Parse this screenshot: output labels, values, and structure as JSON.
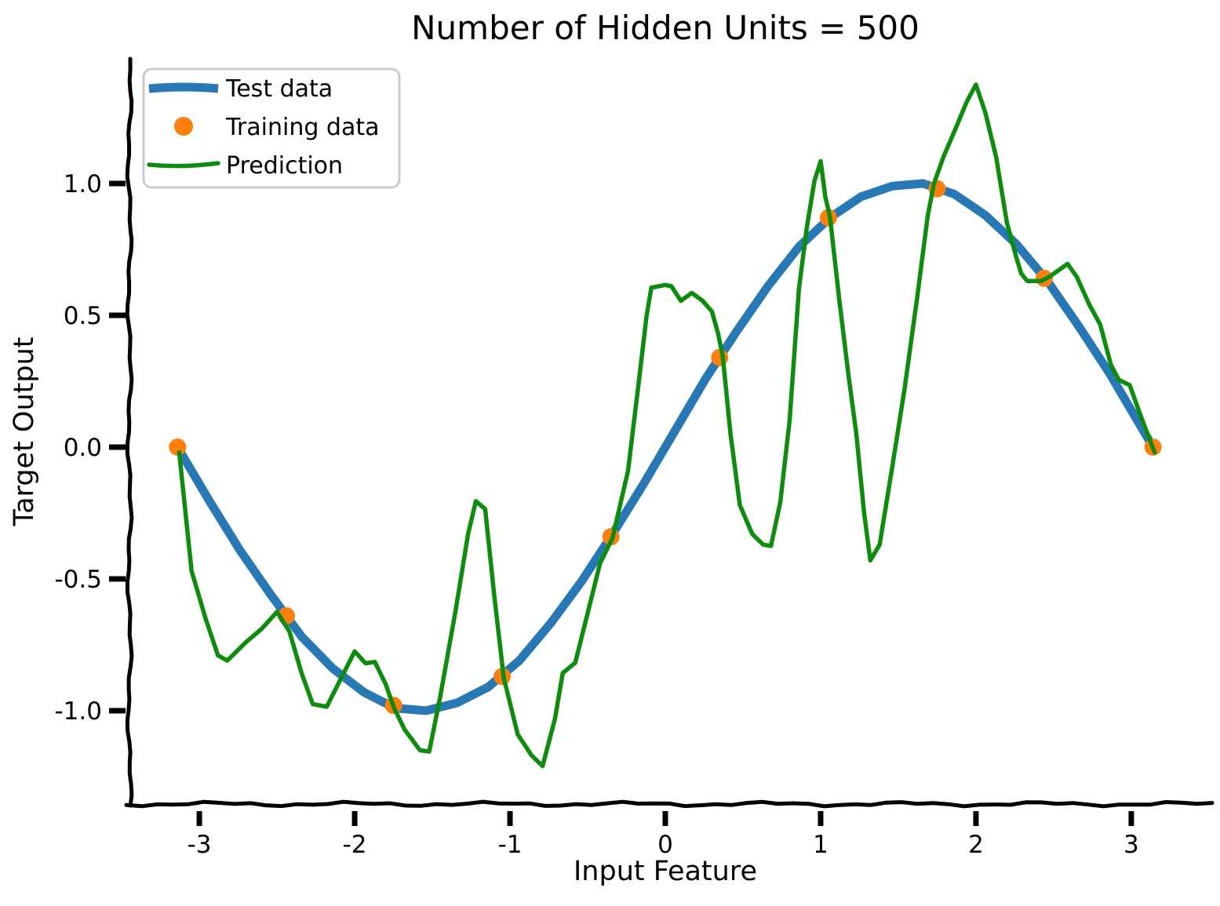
{
  "title": "Number of Hidden Units = 500",
  "axes": {
    "xlabel": "Input Feature",
    "ylabel": "Target Output",
    "x_ticks": [
      -3,
      -2,
      -1,
      0,
      1,
      2,
      3
    ],
    "x_tick_labels": [
      "-3",
      "-2",
      "-1",
      "0",
      "1",
      "2",
      "3"
    ],
    "y_ticks": [
      1.0,
      0.5,
      0.0,
      -0.5,
      -1.0
    ],
    "y_tick_labels": [
      "1.0",
      "0.5",
      "0.0",
      "-0.5",
      "-1.0"
    ],
    "xlim": [
      -3.45,
      3.45
    ],
    "ylim": [
      -1.354,
      1.473
    ],
    "grid": "off",
    "style": "xkcd-sketch"
  },
  "colors": {
    "test_line": "#2878b5",
    "training_dots": "#ff7f0e",
    "prediction_line": "#0d8c0d",
    "axis": "#000000",
    "legend_border": "#cccccc",
    "background": "#ffffff"
  },
  "legend": {
    "position": "upper left",
    "items": [
      {
        "label": "Test data",
        "marker": "thick-line",
        "color": "#2878b5"
      },
      {
        "label": "Training data",
        "marker": "dot",
        "color": "#ff7f0e"
      },
      {
        "label": "Prediction",
        "marker": "line",
        "color": "#0d8c0d"
      }
    ]
  },
  "chart_data": {
    "type": "line",
    "title": "Number of Hidden Units = 500",
    "xlabel": "Input Feature",
    "ylabel": "Target Output",
    "xlim": [
      -3.45,
      3.45
    ],
    "ylim": [
      -1.354,
      1.473
    ],
    "legend_position": "upper left",
    "grid": false,
    "series": [
      {
        "name": "Test data",
        "style": "thick-line",
        "color": "#2878b5",
        "linewidth": 11,
        "description": "smooth sine curve y = sin(x)",
        "points": [
          [
            -3.14,
            0
          ],
          [
            -2.94,
            -0.2
          ],
          [
            -2.74,
            -0.39
          ],
          [
            -2.54,
            -0.56
          ],
          [
            -2.34,
            -0.72
          ],
          [
            -2.14,
            -0.84
          ],
          [
            -1.94,
            -0.93
          ],
          [
            -1.74,
            -0.99
          ],
          [
            -1.54,
            -1.0
          ],
          [
            -1.34,
            -0.97
          ],
          [
            -1.14,
            -0.91
          ],
          [
            -0.94,
            -0.81
          ],
          [
            -0.74,
            -0.67
          ],
          [
            -0.54,
            -0.51
          ],
          [
            -0.34,
            -0.33
          ],
          [
            -0.14,
            -0.14
          ],
          [
            0.06,
            0.06
          ],
          [
            0.26,
            0.26
          ],
          [
            0.46,
            0.44
          ],
          [
            0.66,
            0.61
          ],
          [
            0.86,
            0.76
          ],
          [
            1.06,
            0.87
          ],
          [
            1.26,
            0.95
          ],
          [
            1.46,
            0.99
          ],
          [
            1.66,
            1.0
          ],
          [
            1.86,
            0.96
          ],
          [
            2.06,
            0.88
          ],
          [
            2.26,
            0.77
          ],
          [
            2.46,
            0.63
          ],
          [
            2.66,
            0.46
          ],
          [
            2.86,
            0.28
          ],
          [
            3.06,
            0.08
          ],
          [
            3.14,
            0
          ]
        ]
      },
      {
        "name": "Training data",
        "style": "scatter",
        "color": "#ff7f0e",
        "marker_radius": 11,
        "description": "10 points evenly spaced on y = sin(x)",
        "points": [
          [
            -3.14,
            0.0
          ],
          [
            -2.44,
            -0.64
          ],
          [
            -1.75,
            -0.98
          ],
          [
            -1.05,
            -0.87
          ],
          [
            -0.35,
            -0.34
          ],
          [
            0.35,
            0.34
          ],
          [
            1.05,
            0.87
          ],
          [
            1.75,
            0.98
          ],
          [
            2.44,
            0.64
          ],
          [
            3.14,
            0.0
          ]
        ]
      },
      {
        "name": "Prediction",
        "style": "line",
        "color": "#0d8c0d",
        "linewidth": 5.5,
        "description": "overfit jagged neural-network prediction",
        "points": [
          [
            -3.13,
            -0.02
          ],
          [
            -3.05,
            -0.47
          ],
          [
            -2.96,
            -0.65
          ],
          [
            -2.88,
            -0.79
          ],
          [
            -2.82,
            -0.81
          ],
          [
            -2.7,
            -0.74
          ],
          [
            -2.6,
            -0.69
          ],
          [
            -2.5,
            -0.625
          ],
          [
            -2.42,
            -0.7
          ],
          [
            -2.34,
            -0.86
          ],
          [
            -2.27,
            -0.975
          ],
          [
            -2.18,
            -0.985
          ],
          [
            -2.09,
            -0.88
          ],
          [
            -2.0,
            -0.775
          ],
          [
            -1.93,
            -0.82
          ],
          [
            -1.87,
            -0.815
          ],
          [
            -1.8,
            -0.9
          ],
          [
            -1.75,
            -0.985
          ],
          [
            -1.68,
            -1.07
          ],
          [
            -1.58,
            -1.15
          ],
          [
            -1.52,
            -1.155
          ],
          [
            -1.45,
            -0.95
          ],
          [
            -1.35,
            -0.62
          ],
          [
            -1.27,
            -0.33
          ],
          [
            -1.22,
            -0.205
          ],
          [
            -1.16,
            -0.235
          ],
          [
            -1.1,
            -0.57
          ],
          [
            -1.04,
            -0.875
          ],
          [
            -0.95,
            -1.09
          ],
          [
            -0.86,
            -1.17
          ],
          [
            -0.79,
            -1.21
          ],
          [
            -0.71,
            -1.03
          ],
          [
            -0.66,
            -0.857
          ],
          [
            -0.58,
            -0.818
          ],
          [
            -0.5,
            -0.63
          ],
          [
            -0.42,
            -0.44
          ],
          [
            -0.34,
            -0.345
          ],
          [
            -0.24,
            -0.09
          ],
          [
            -0.17,
            0.25
          ],
          [
            -0.12,
            0.5
          ],
          [
            -0.09,
            0.605
          ],
          [
            0.0,
            0.615
          ],
          [
            0.04,
            0.61
          ],
          [
            0.1,
            0.555
          ],
          [
            0.17,
            0.585
          ],
          [
            0.24,
            0.555
          ],
          [
            0.3,
            0.515
          ],
          [
            0.34,
            0.43
          ],
          [
            0.37,
            0.345
          ],
          [
            0.42,
            0.05
          ],
          [
            0.48,
            -0.22
          ],
          [
            0.56,
            -0.33
          ],
          [
            0.63,
            -0.37
          ],
          [
            0.68,
            -0.375
          ],
          [
            0.74,
            -0.21
          ],
          [
            0.8,
            0.1
          ],
          [
            0.86,
            0.6
          ],
          [
            0.91,
            0.83
          ],
          [
            0.96,
            1.01
          ],
          [
            1.0,
            1.085
          ],
          [
            1.03,
            0.95
          ],
          [
            1.06,
            0.875
          ],
          [
            1.12,
            0.56
          ],
          [
            1.18,
            0.27
          ],
          [
            1.23,
            0.05
          ],
          [
            1.28,
            -0.25
          ],
          [
            1.32,
            -0.43
          ],
          [
            1.38,
            -0.37
          ],
          [
            1.46,
            -0.08
          ],
          [
            1.54,
            0.22
          ],
          [
            1.62,
            0.56
          ],
          [
            1.69,
            0.88
          ],
          [
            1.73,
            1.0
          ],
          [
            1.79,
            1.1
          ],
          [
            1.87,
            1.21
          ],
          [
            1.94,
            1.31
          ],
          [
            2.0,
            1.375
          ],
          [
            2.06,
            1.27
          ],
          [
            2.13,
            1.1
          ],
          [
            2.2,
            0.85
          ],
          [
            2.26,
            0.72
          ],
          [
            2.29,
            0.66
          ],
          [
            2.33,
            0.63
          ],
          [
            2.42,
            0.63
          ],
          [
            2.47,
            0.645
          ],
          [
            2.53,
            0.67
          ],
          [
            2.59,
            0.695
          ],
          [
            2.65,
            0.645
          ],
          [
            2.73,
            0.54
          ],
          [
            2.8,
            0.465
          ],
          [
            2.87,
            0.31
          ],
          [
            2.92,
            0.255
          ],
          [
            2.99,
            0.235
          ],
          [
            3.06,
            0.12
          ],
          [
            3.15,
            -0.02
          ]
        ]
      }
    ]
  }
}
